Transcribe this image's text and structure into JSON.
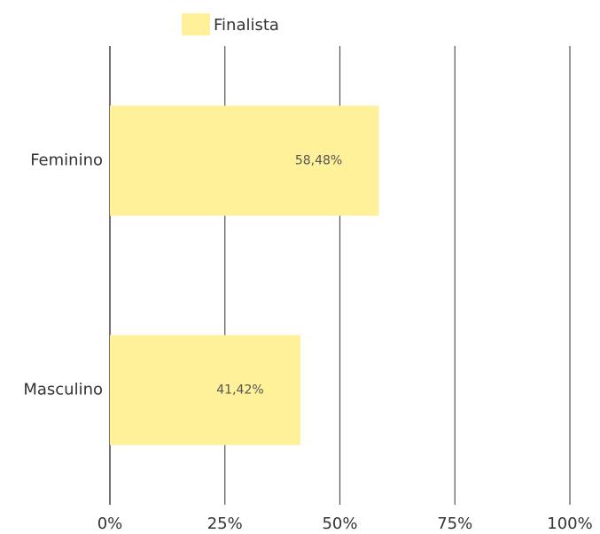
{
  "chart_data": {
    "type": "bar",
    "orientation": "horizontal",
    "categories": [
      "Feminino",
      "Masculino"
    ],
    "series": [
      {
        "name": "Finalista",
        "color": "#fff09a",
        "values": [
          58.48,
          41.42
        ],
        "value_labels": [
          "58,48%",
          "41,42%"
        ]
      }
    ],
    "xlim": [
      0,
      100
    ],
    "xticks": [
      {
        "value": 0,
        "label": "0%"
      },
      {
        "value": 25,
        "label": "25%"
      },
      {
        "value": 50,
        "label": "50%"
      },
      {
        "value": 75,
        "label": "75%"
      },
      {
        "value": 100,
        "label": "100%"
      }
    ],
    "grid": true,
    "legend": "top"
  }
}
